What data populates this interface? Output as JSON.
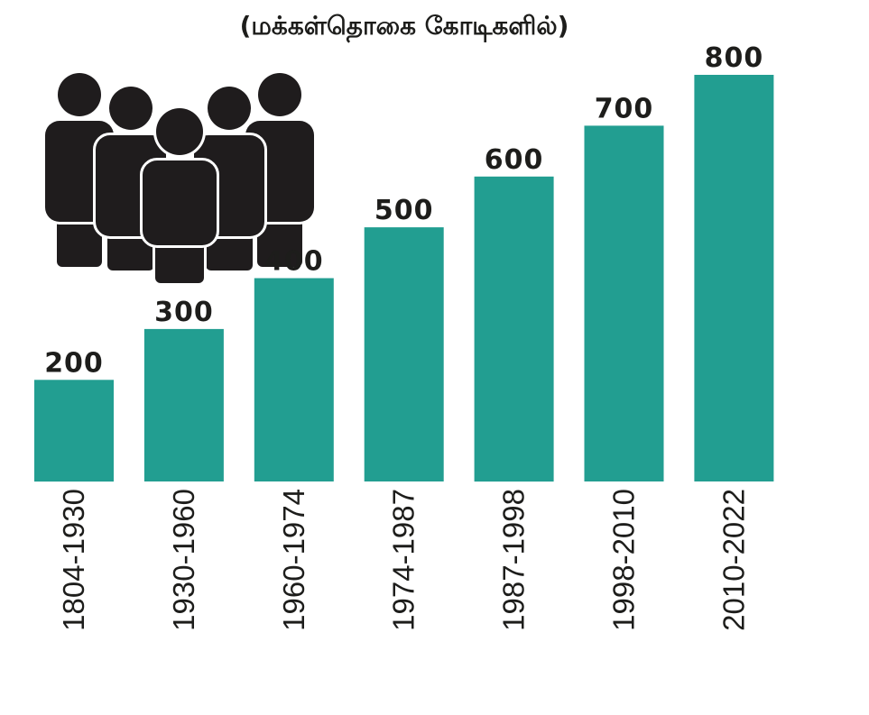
{
  "chart_data": {
    "type": "bar",
    "title": "(மக்கள்தொகை கோடிகளில்)",
    "categories": [
      "1804-1930",
      "1930-1960",
      "1960-1974",
      "1974-1987",
      "1987-1998",
      "1998-2010",
      "2010-2022"
    ],
    "series": [
      {
        "values": [
          200,
          300,
          400,
          500,
          600,
          700,
          800
        ]
      }
    ],
    "ylim": [
      0,
      800
    ],
    "grid": false,
    "legend": "none",
    "xlabel": "",
    "ylabel": "",
    "colors": {
      "bar": "#229e91",
      "text": "#1d1d1b",
      "icon": "#1f1c1d"
    },
    "icon": "people-group-icon"
  }
}
